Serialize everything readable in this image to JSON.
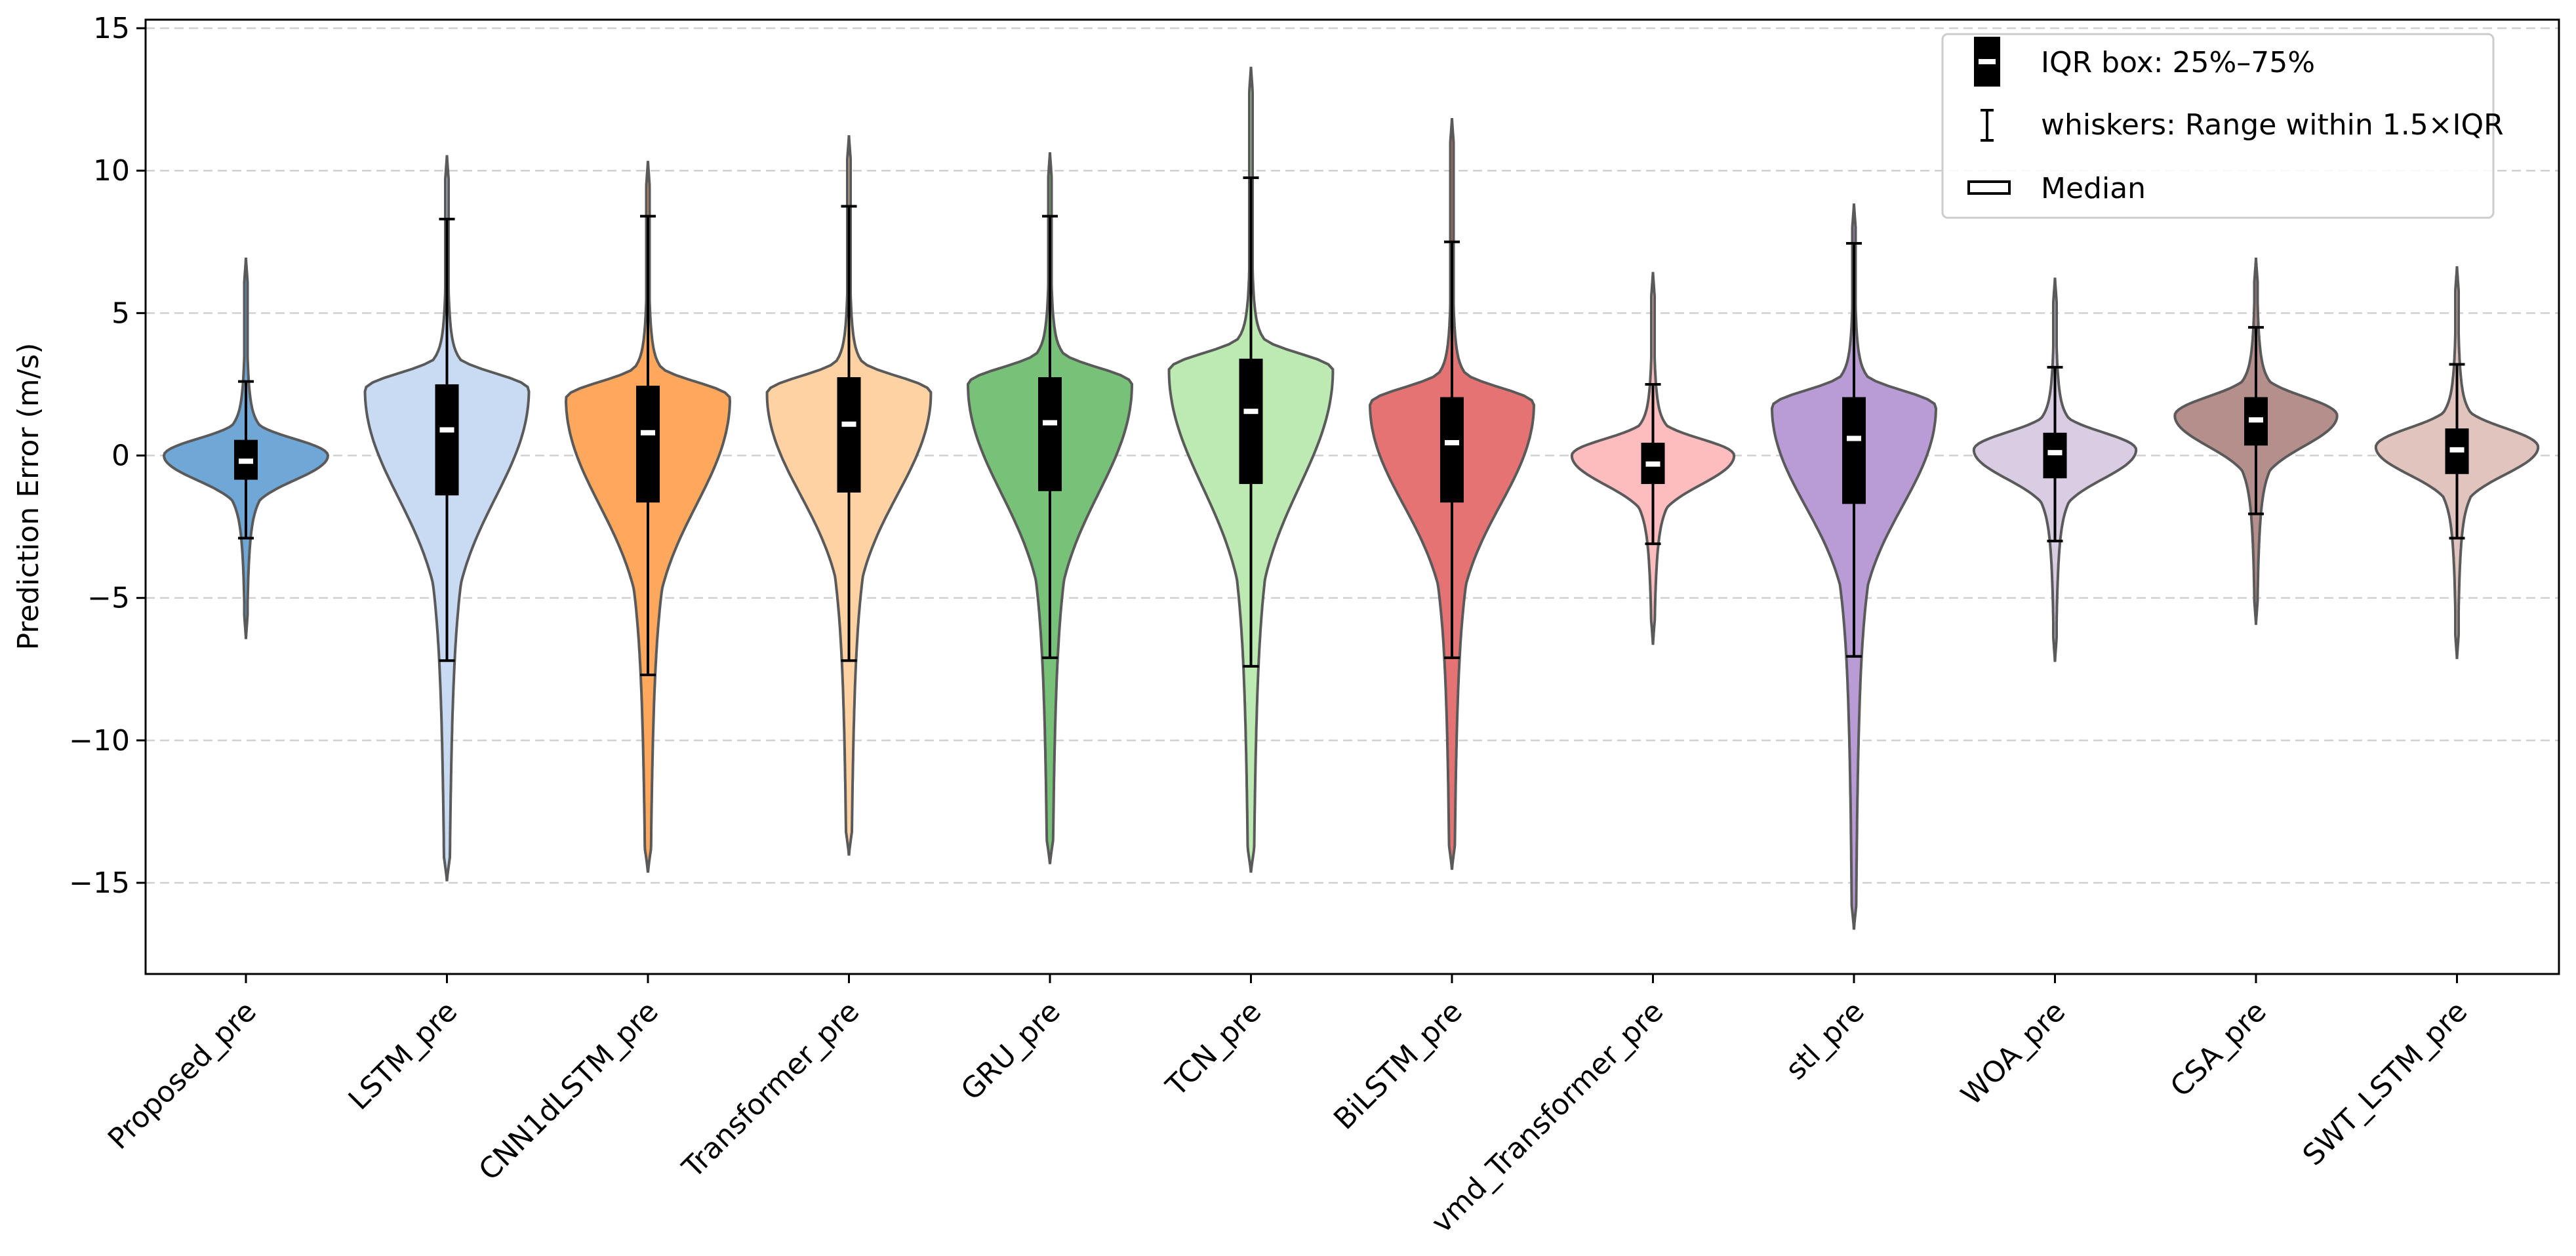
{
  "chart_data": {
    "type": "violin",
    "ylabel": "Prediction Error (m/s)",
    "ylim": [
      -18.2,
      15.3
    ],
    "yticks": [
      15,
      10,
      5,
      0,
      -5,
      -10,
      -15
    ],
    "ytick_labels": [
      "15",
      "10",
      "5",
      "0",
      "−5",
      "−10",
      "−15"
    ],
    "grid": "horizontal dashed",
    "legend_position": "top-right",
    "legend": [
      {
        "key": "box",
        "label": "IQR box: 25%–75%"
      },
      {
        "key": "whisker",
        "label": "whiskers: Range within 1.5×IQR"
      },
      {
        "key": "median",
        "label": "Median"
      }
    ],
    "series": [
      {
        "name": "Proposed_pre",
        "color": "#6fa8d6",
        "min": -6.4,
        "max": 6.9,
        "q1": -0.85,
        "median": -0.2,
        "q3": 0.55,
        "whisker_low": -2.9,
        "whisker_high": 2.6,
        "mode": 0.0,
        "half_width": 1.0
      },
      {
        "name": "LSTM_pre",
        "color": "#c8dbf3",
        "min": -14.9,
        "max": 10.5,
        "q1": -1.4,
        "median": 0.9,
        "q3": 2.5,
        "whisker_low": -7.2,
        "whisker_high": 8.3,
        "mode": 2.3,
        "half_width": 1.0
      },
      {
        "name": "CNN1dLSTM_pre",
        "color": "#fda85c",
        "min": -14.6,
        "max": 10.3,
        "q1": -1.65,
        "median": 0.8,
        "q3": 2.45,
        "whisker_low": -7.7,
        "whisker_high": 8.4,
        "mode": 2.0,
        "half_width": 1.0
      },
      {
        "name": "Transformer_pre",
        "color": "#fed2a3",
        "min": -14.0,
        "max": 11.2,
        "q1": -1.3,
        "median": 1.1,
        "q3": 2.75,
        "whisker_low": -7.2,
        "whisker_high": 8.75,
        "mode": 2.2,
        "half_width": 1.0
      },
      {
        "name": "GRU_pre",
        "color": "#78c178",
        "min": -14.3,
        "max": 10.6,
        "q1": -1.25,
        "median": 1.15,
        "q3": 2.75,
        "whisker_low": -7.1,
        "whisker_high": 8.4,
        "mode": 2.5,
        "half_width": 1.0
      },
      {
        "name": "TCN_pre",
        "color": "#bdeab3",
        "min": -14.6,
        "max": 13.6,
        "q1": -1.0,
        "median": 1.55,
        "q3": 3.4,
        "whisker_low": -7.4,
        "whisker_high": 9.75,
        "mode": 3.0,
        "half_width": 1.0
      },
      {
        "name": "BiLSTM_pre",
        "color": "#e57374",
        "min": -14.5,
        "max": 11.8,
        "q1": -1.65,
        "median": 0.45,
        "q3": 2.05,
        "whisker_low": -7.1,
        "whisker_high": 7.5,
        "mode": 1.8,
        "half_width": 1.0
      },
      {
        "name": "vmd_Transformer_pre",
        "color": "#fdbcbd",
        "min": -6.6,
        "max": 6.4,
        "q1": -1.0,
        "median": -0.3,
        "q3": 0.45,
        "whisker_low": -3.1,
        "whisker_high": 2.5,
        "mode": 0.0,
        "half_width": 0.99
      },
      {
        "name": "stl_pre",
        "color": "#b99bd6",
        "min": -16.6,
        "max": 8.8,
        "q1": -1.7,
        "median": 0.6,
        "q3": 2.05,
        "whisker_low": -7.05,
        "whisker_high": 7.45,
        "mode": 1.7,
        "half_width": 1.0
      },
      {
        "name": "WOA_pre",
        "color": "#d9cde4",
        "min": -7.2,
        "max": 6.2,
        "q1": -0.8,
        "median": 0.1,
        "q3": 0.8,
        "whisker_low": -3.0,
        "whisker_high": 3.1,
        "mode": 0.2,
        "half_width": 0.99
      },
      {
        "name": "CSA_pre",
        "color": "#b58f8b",
        "min": -5.9,
        "max": 6.9,
        "q1": 0.35,
        "median": 1.25,
        "q3": 2.05,
        "whisker_low": -2.05,
        "whisker_high": 4.5,
        "mode": 1.4,
        "half_width": 0.99
      },
      {
        "name": "SWT_LSTM_pre",
        "color": "#e1c4bd",
        "min": -7.1,
        "max": 6.6,
        "q1": -0.65,
        "median": 0.2,
        "q3": 0.95,
        "whisker_low": -2.9,
        "whisker_high": 3.2,
        "mode": 0.3,
        "half_width": 0.99
      }
    ]
  }
}
